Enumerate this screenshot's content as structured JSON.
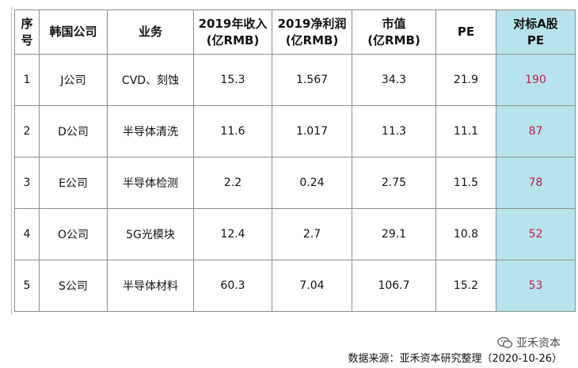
{
  "table": {
    "headers": [
      {
        "line1": "序",
        "line2": "号"
      },
      {
        "line1": "韩国公司",
        "line2": ""
      },
      {
        "line1": "业务",
        "line2": ""
      },
      {
        "line1": "2019年收入",
        "line2": "(亿RMB)"
      },
      {
        "line1": "2019净利润",
        "line2": "(亿RMB)"
      },
      {
        "line1": "市值",
        "line2": "(亿RMB)"
      },
      {
        "line1": "PE",
        "line2": ""
      },
      {
        "line1": "对标A股",
        "line2": "PE"
      }
    ],
    "rows": [
      {
        "idx": "1",
        "company": "J公司",
        "business": "CVD、刻蚀",
        "revenue": "15.3",
        "profit": "1.567",
        "market_cap": "34.3",
        "pe": "21.9",
        "a_pe": "190"
      },
      {
        "idx": "2",
        "company": "D公司",
        "business": "半导体清洗",
        "revenue": "11.6",
        "profit": "1.017",
        "market_cap": "11.3",
        "pe": "11.1",
        "a_pe": "87"
      },
      {
        "idx": "3",
        "company": "E公司",
        "business": "半导体检测",
        "revenue": "2.2",
        "profit": "0.24",
        "market_cap": "2.75",
        "pe": "11.5",
        "a_pe": "78"
      },
      {
        "idx": "4",
        "company": "O公司",
        "business": "5G光模块",
        "revenue": "12.4",
        "profit": "2.7",
        "market_cap": "29.1",
        "pe": "10.8",
        "a_pe": "52"
      },
      {
        "idx": "5",
        "company": "S公司",
        "business": "半导体材料",
        "revenue": "60.3",
        "profit": "7.04",
        "market_cap": "106.7",
        "pe": "15.2",
        "a_pe": "53"
      }
    ]
  },
  "colors": {
    "highlight_column": "#b7e4ec",
    "target_text": "#c0194c"
  },
  "watermark": {
    "icon": "wechat-logo-icon",
    "text": "亚禾资本"
  },
  "source_note": "数据来源：亚禾资本研究整理（2020-10-26）"
}
